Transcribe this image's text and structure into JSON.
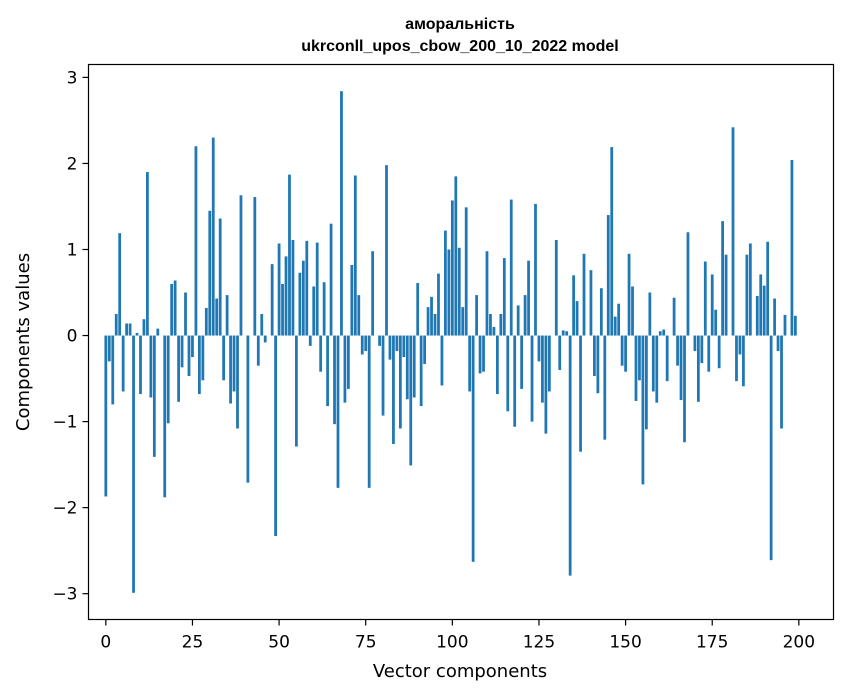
{
  "chart_data": {
    "type": "bar",
    "title_line1": "аморальність",
    "title_line2": "ukrconll_upos_cbow_200_10_2022 model",
    "xlabel": "Vector components",
    "ylabel": "Components values",
    "xlim": [
      -5,
      210
    ],
    "ylim": [
      -3.3,
      3.15
    ],
    "xticks": [
      0,
      25,
      50,
      75,
      100,
      125,
      150,
      175,
      200
    ],
    "yticks": [
      -3,
      -2,
      -1,
      0,
      1,
      2,
      3
    ],
    "ytick_labels": [
      "−3",
      "−2",
      "−1",
      "0",
      "1",
      "2",
      "3"
    ],
    "bar_color": "#1f77b4",
    "grid": false,
    "values": [
      -1.87,
      -0.3,
      -0.8,
      0.25,
      1.19,
      -0.65,
      0.14,
      0.14,
      -2.99,
      0.03,
      -0.68,
      0.19,
      1.9,
      -0.72,
      -1.41,
      0.08,
      0.0,
      -1.88,
      -1.02,
      0.6,
      0.64,
      -0.77,
      -0.37,
      0.5,
      -0.47,
      -0.25,
      2.2,
      -0.68,
      -0.52,
      0.32,
      1.45,
      2.3,
      0.43,
      1.36,
      -0.52,
      0.47,
      -0.79,
      -0.65,
      -1.08,
      1.63,
      0.0,
      -1.71,
      0.0,
      1.61,
      -0.35,
      0.25,
      -0.08,
      0.0,
      0.83,
      -2.33,
      1.07,
      0.6,
      0.92,
      1.87,
      1.11,
      -1.29,
      0.73,
      0.87,
      1.1,
      -0.12,
      0.57,
      1.08,
      -0.42,
      0.62,
      -0.82,
      1.3,
      -1.03,
      -1.77,
      2.84,
      -0.78,
      -0.62,
      0.82,
      1.86,
      0.47,
      -0.22,
      -0.18,
      -1.77,
      0.98,
      0.0,
      -0.12,
      -0.93,
      1.98,
      -0.28,
      -1.26,
      -0.18,
      -1.08,
      -0.25,
      -0.74,
      -1.51,
      -0.72,
      0.61,
      -0.82,
      -0.33,
      0.33,
      0.45,
      0.25,
      0.72,
      -0.58,
      1.22,
      1.0,
      1.57,
      1.85,
      1.02,
      0.33,
      1.49,
      -0.65,
      -2.63,
      0.47,
      -0.44,
      -0.42,
      0.98,
      0.25,
      0.1,
      -0.68,
      0.25,
      0.9,
      -0.88,
      1.58,
      -1.06,
      0.35,
      -0.62,
      0.47,
      0.87,
      -1.0,
      1.53,
      -0.3,
      -0.78,
      -1.14,
      -0.65,
      0.0,
      1.11,
      -0.4,
      0.06,
      0.05,
      -2.79,
      0.7,
      0.4,
      -1.35,
      0.95,
      0.0,
      0.76,
      -0.47,
      -0.67,
      0.55,
      -1.21,
      1.4,
      2.19,
      0.22,
      0.37,
      -0.35,
      -0.42,
      0.95,
      0.57,
      -0.76,
      -0.52,
      -1.73,
      -1.09,
      0.5,
      -0.65,
      -0.78,
      0.05,
      0.07,
      -0.53,
      0.0,
      0.44,
      -0.35,
      -0.75,
      -1.24,
      1.2,
      0.0,
      -0.18,
      -0.77,
      -0.32,
      0.86,
      -0.42,
      0.71,
      0.3,
      -0.38,
      1.33,
      0.94,
      0.0,
      2.42,
      -0.53,
      -0.22,
      -0.59,
      0.94,
      1.07,
      0.0,
      0.46,
      0.71,
      0.58,
      1.09,
      -2.61,
      0.43,
      -0.18,
      -1.08,
      0.24,
      0.0,
      2.04,
      0.23
    ]
  }
}
